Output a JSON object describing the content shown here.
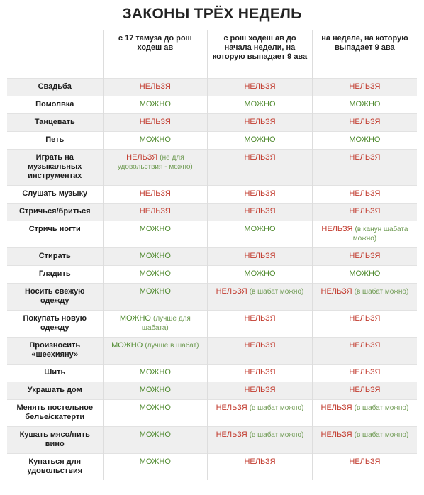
{
  "title": "ЗАКОНЫ ТРЁХ НЕДЕЛЬ",
  "note_color": "#6e9a52",
  "column_headers": [
    "с 17 тамуза до рош ходеш ав",
    "с рош ходеш ав до начала недели, на которую выпадает 9 ава",
    "на неделе, на которую выпадает 9 ава"
  ],
  "rows": [
    {
      "label": "Свадьба",
      "cells": [
        {
          "text": "НЕЛЬЗЯ",
          "color": "#c23b2e"
        },
        {
          "text": "НЕЛЬЗЯ",
          "color": "#c23b2e"
        },
        {
          "text": "НЕЛЬЗЯ",
          "color": "#c23b2e"
        }
      ]
    },
    {
      "label": "Помолвка",
      "cells": [
        {
          "text": "МОЖНО",
          "color": "#4f8a2e"
        },
        {
          "text": "МОЖНО",
          "color": "#4f8a2e"
        },
        {
          "text": "МОЖНО",
          "color": "#4f8a2e"
        }
      ]
    },
    {
      "label": "Танцевать",
      "cells": [
        {
          "text": "НЕЛЬЗЯ",
          "color": "#c23b2e"
        },
        {
          "text": "НЕЛЬЗЯ",
          "color": "#c23b2e"
        },
        {
          "text": "НЕЛЬЗЯ",
          "color": "#c23b2e"
        }
      ]
    },
    {
      "label": "Петь",
      "cells": [
        {
          "text": "МОЖНО",
          "color": "#4f8a2e"
        },
        {
          "text": "МОЖНО",
          "color": "#4f8a2e"
        },
        {
          "text": "МОЖНО",
          "color": "#4f8a2e"
        }
      ]
    },
    {
      "label": "Играть на музыкальных инструментах",
      "cells": [
        {
          "text": "НЕЛЬЗЯ",
          "color": "#c23b2e",
          "note": "(не для удовольствия - можно)"
        },
        {
          "text": "НЕЛЬЗЯ",
          "color": "#c23b2e"
        },
        {
          "text": "НЕЛЬЗЯ",
          "color": "#c23b2e"
        }
      ]
    },
    {
      "label": "Слушать музыку",
      "cells": [
        {
          "text": "НЕЛЬЗЯ",
          "color": "#c23b2e"
        },
        {
          "text": "НЕЛЬЗЯ",
          "color": "#c23b2e"
        },
        {
          "text": "НЕЛЬЗЯ",
          "color": "#c23b2e"
        }
      ]
    },
    {
      "label": "Стричься/бриться",
      "cells": [
        {
          "text": "НЕЛЬЗЯ",
          "color": "#c23b2e"
        },
        {
          "text": "НЕЛЬЗЯ",
          "color": "#c23b2e"
        },
        {
          "text": "НЕЛЬЗЯ",
          "color": "#c23b2e"
        }
      ]
    },
    {
      "label": "Стричь ногти",
      "cells": [
        {
          "text": "МОЖНО",
          "color": "#4f8a2e"
        },
        {
          "text": "МОЖНО",
          "color": "#4f8a2e"
        },
        {
          "text": "НЕЛЬЗЯ",
          "color": "#c23b2e",
          "note": "(в канун шабата можно)"
        }
      ]
    },
    {
      "label": "Стирать",
      "cells": [
        {
          "text": "МОЖНО",
          "color": "#4f8a2e"
        },
        {
          "text": "НЕЛЬЗЯ",
          "color": "#c23b2e"
        },
        {
          "text": "НЕЛЬЗЯ",
          "color": "#c23b2e"
        }
      ]
    },
    {
      "label": "Гладить",
      "cells": [
        {
          "text": "МОЖНО",
          "color": "#4f8a2e"
        },
        {
          "text": "МОЖНО",
          "color": "#4f8a2e"
        },
        {
          "text": "МОЖНО",
          "color": "#4f8a2e"
        }
      ]
    },
    {
      "label": "Носить свежую одежду",
      "cells": [
        {
          "text": "МОЖНО",
          "color": "#4f8a2e"
        },
        {
          "text": "НЕЛЬЗЯ",
          "color": "#c23b2e",
          "note": "(в шабат можно)"
        },
        {
          "text": "НЕЛЬЗЯ",
          "color": "#c23b2e",
          "note": "(в шабат можно)"
        }
      ]
    },
    {
      "label": "Покупать новую одежду",
      "cells": [
        {
          "text": "МОЖНО",
          "color": "#4f8a2e",
          "note": "(лучше для шабата)"
        },
        {
          "text": "НЕЛЬЗЯ",
          "color": "#c23b2e"
        },
        {
          "text": "НЕЛЬЗЯ",
          "color": "#c23b2e"
        }
      ]
    },
    {
      "label": "Произносить «шеехияну»",
      "cells": [
        {
          "text": "МОЖНО",
          "color": "#4f8a2e",
          "note": "(лучше в шабат)"
        },
        {
          "text": "НЕЛЬЗЯ",
          "color": "#c23b2e"
        },
        {
          "text": "НЕЛЬЗЯ",
          "color": "#c23b2e"
        }
      ]
    },
    {
      "label": "Шить",
      "cells": [
        {
          "text": "МОЖНО",
          "color": "#4f8a2e"
        },
        {
          "text": "НЕЛЬЗЯ",
          "color": "#c23b2e"
        },
        {
          "text": "НЕЛЬЗЯ",
          "color": "#c23b2e"
        }
      ]
    },
    {
      "label": "Украшать дом",
      "cells": [
        {
          "text": "МОЖНО",
          "color": "#4f8a2e"
        },
        {
          "text": "НЕЛЬЗЯ",
          "color": "#c23b2e"
        },
        {
          "text": "НЕЛЬЗЯ",
          "color": "#c23b2e"
        }
      ]
    },
    {
      "label": "Менять постельное белье/скатерти",
      "cells": [
        {
          "text": "МОЖНО",
          "color": "#4f8a2e"
        },
        {
          "text": "НЕЛЬЗЯ",
          "color": "#c23b2e",
          "note": "(в шабат можно)"
        },
        {
          "text": "НЕЛЬЗЯ",
          "color": "#c23b2e",
          "note": "(в шабат можно)"
        }
      ]
    },
    {
      "label": "Кушать мясо/пить вино",
      "cells": [
        {
          "text": "МОЖНО",
          "color": "#4f8a2e"
        },
        {
          "text": "НЕЛЬЗЯ",
          "color": "#c23b2e",
          "note": "(в шабат можно)"
        },
        {
          "text": "НЕЛЬЗЯ",
          "color": "#c23b2e",
          "note": "(в шабат можно)"
        }
      ]
    },
    {
      "label": "Купаться для удовольствия",
      "cells": [
        {
          "text": "МОЖНО",
          "color": "#4f8a2e"
        },
        {
          "text": "НЕЛЬЗЯ",
          "color": "#c23b2e"
        },
        {
          "text": "НЕЛЬЗЯ",
          "color": "#c23b2e"
        }
      ]
    }
  ]
}
